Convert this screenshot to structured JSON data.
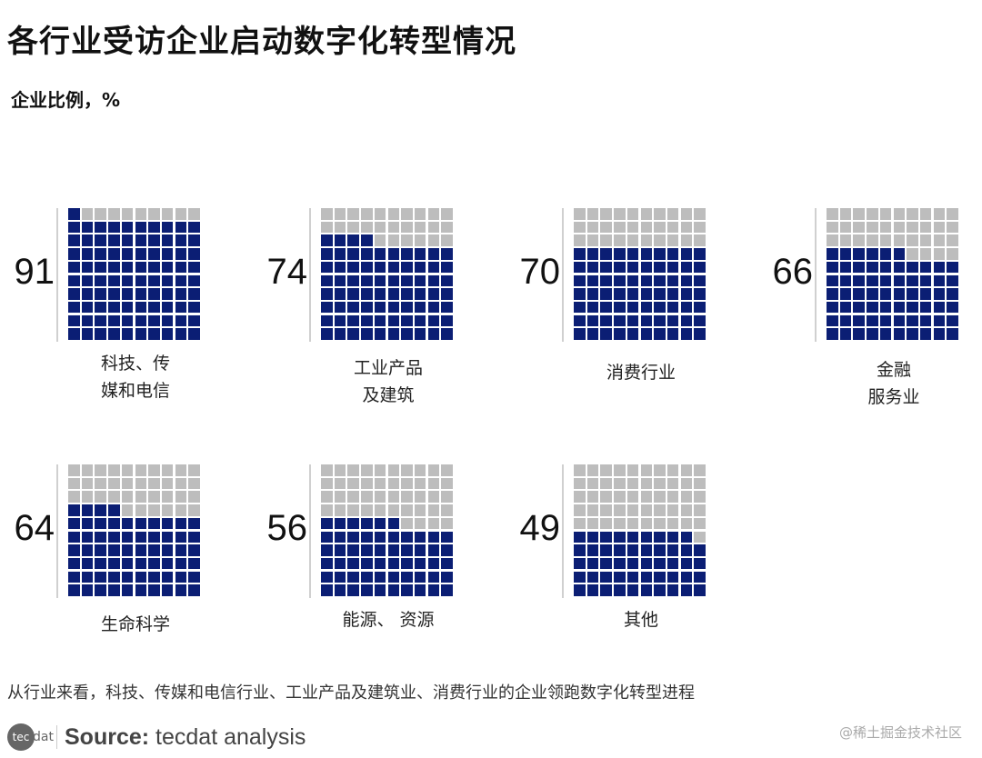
{
  "title": "各行业受访企业启动数字化转型情况",
  "subtitle": "企业比例，%",
  "chart_data": {
    "type": "waffle",
    "title": "各行业受访企业启动数字化转型情况",
    "ylabel": "企业比例，%",
    "grid": "10x10",
    "colors": {
      "filled": "#0b1e74",
      "empty": "#bdbdbd"
    },
    "categories": [
      "科技、传\n媒和电信",
      "工业产品\n及建筑",
      "消费行业",
      "金融\n服务业",
      "生命科学",
      "能源、 资源",
      "其他"
    ],
    "values": [
      91,
      74,
      70,
      66,
      64,
      56,
      49
    ]
  },
  "note": "从行业来看，科技、传媒和电信行业、工业产品及建筑业、消费行业的企业领跑数字化转型进程",
  "footer": {
    "logo_text": "tec",
    "logo_text2": "dat",
    "source_label": "Source:",
    "source_text": " tecdat analysis",
    "watermark": "@稀土掘金技术社区"
  }
}
